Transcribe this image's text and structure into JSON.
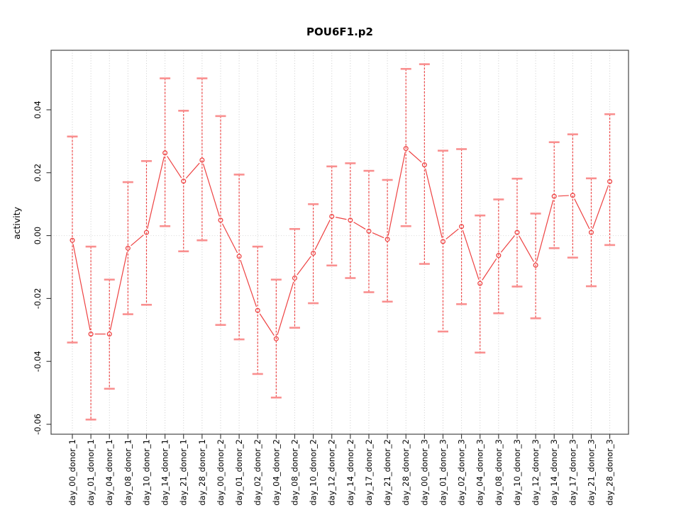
{
  "figure": {
    "background": "#ffffff"
  },
  "chart_data": {
    "type": "line",
    "title": "POU6F1.p2",
    "xlabel": "",
    "ylabel": "activity",
    "legend": "none",
    "grid": "vertical dotted gridline per category; horizontal dotted line at 0 only",
    "x_labels_rotated_90": true,
    "y_labels_rotated_90": true,
    "ylim": [
      -0.063,
      0.059
    ],
    "yticks": [
      0.04,
      0.02,
      0.0,
      -0.02,
      -0.04,
      -0.06
    ],
    "ytick_labels": [
      "0.04",
      "0.02",
      "0.00",
      "-0.02",
      "-0.04",
      "-0.06"
    ],
    "marker": "open-circle",
    "error_bar_style": "dashed vertical line with solid horizontal caps",
    "categories": [
      "day_00_donor_1",
      "day_01_donor_1",
      "day_04_donor_1",
      "day_08_donor_1",
      "day_10_donor_1",
      "day_14_donor_1",
      "day_21_donor_1",
      "day_28_donor_1",
      "day_00_donor_2",
      "day_01_donor_2",
      "day_02_donor_2",
      "day_04_donor_2",
      "day_08_donor_2",
      "day_10_donor_2",
      "day_12_donor_2",
      "day_14_donor_2",
      "day_17_donor_2",
      "day_21_donor_2",
      "day_28_donor_2",
      "day_00_donor_3",
      "day_01_donor_3",
      "day_02_donor_3",
      "day_04_donor_3",
      "day_08_donor_3",
      "day_10_donor_3",
      "day_12_donor_3",
      "day_14_donor_3",
      "day_17_donor_3",
      "day_21_donor_3",
      "day_28_donor_3"
    ],
    "values": [
      -0.0015,
      -0.0313,
      -0.0313,
      -0.004,
      0.001,
      0.0263,
      0.0173,
      0.024,
      0.0049,
      -0.0066,
      -0.0238,
      -0.0328,
      -0.0135,
      -0.0056,
      0.0061,
      0.0049,
      0.0014,
      -0.0012,
      0.0277,
      0.0225,
      -0.0019,
      0.0029,
      -0.0152,
      -0.0063,
      0.001,
      -0.0094,
      0.0125,
      0.0128,
      0.001,
      0.0172
    ],
    "error_low": [
      -0.034,
      -0.0585,
      -0.0487,
      -0.025,
      -0.022,
      0.003,
      -0.005,
      -0.0015,
      -0.0284,
      -0.033,
      -0.044,
      -0.0515,
      -0.0293,
      -0.0215,
      -0.0095,
      -0.0135,
      -0.018,
      -0.021,
      0.003,
      -0.009,
      -0.0305,
      -0.0218,
      -0.0372,
      -0.0247,
      -0.0162,
      -0.0263,
      -0.004,
      -0.007,
      -0.0161,
      -0.003
    ],
    "error_high": [
      0.0315,
      -0.0035,
      -0.014,
      0.017,
      0.0237,
      0.05,
      0.0397,
      0.05,
      0.038,
      0.0194,
      -0.0035,
      -0.014,
      0.0021,
      0.01,
      0.022,
      0.023,
      0.0206,
      0.0177,
      0.053,
      0.0545,
      0.027,
      0.0275,
      0.0064,
      0.0115,
      0.0181,
      0.007,
      0.0297,
      0.0322,
      0.0182,
      0.0386
    ],
    "colors": {
      "series": "#ee4242",
      "cap": "#f98f8f",
      "grid": "#cccccc",
      "zero_line": "#d8d8d8",
      "box": "#4d4d4d",
      "tick": "#333333",
      "text": "#000000"
    }
  }
}
